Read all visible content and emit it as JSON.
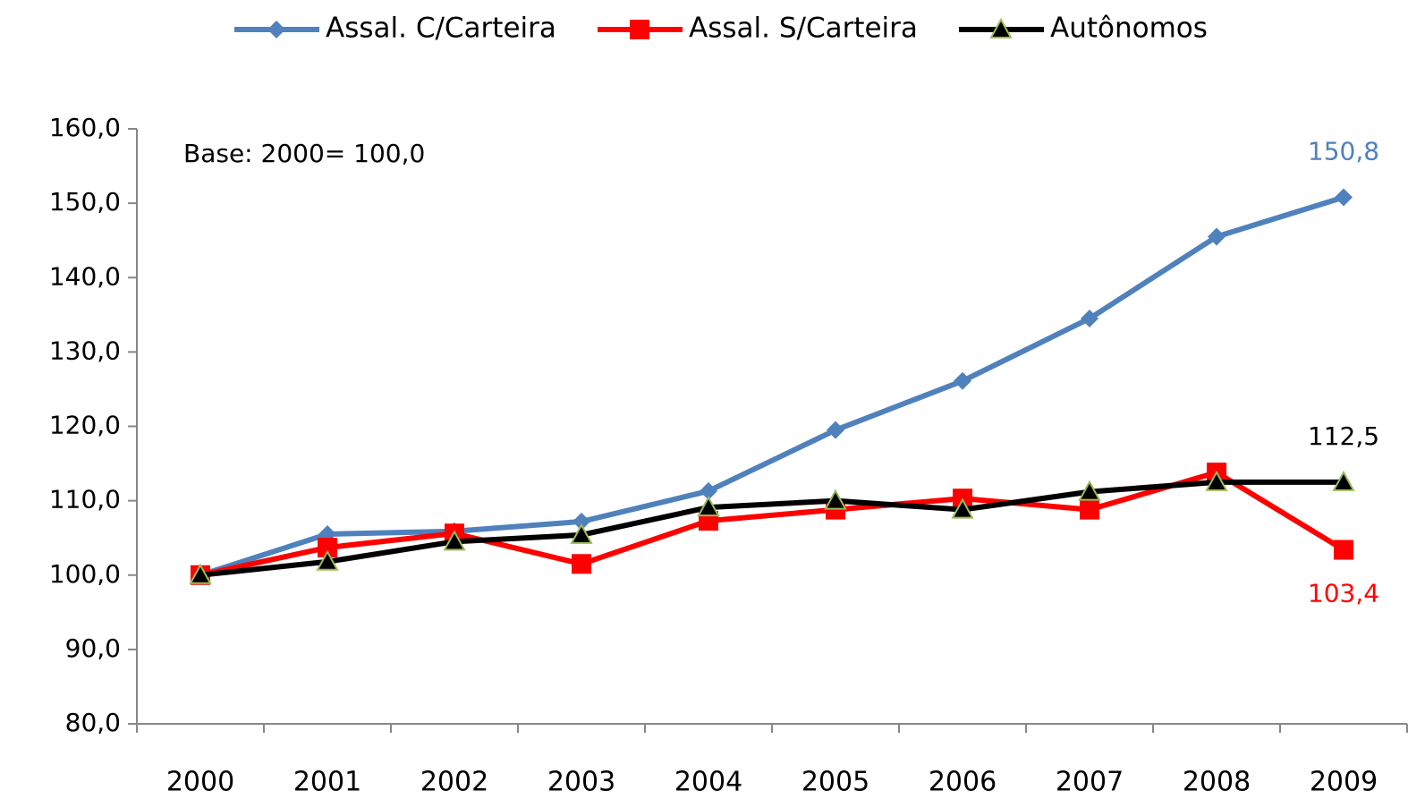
{
  "chart_data": {
    "type": "line",
    "annotation": "Base: 2000= 100,0",
    "categories": [
      "2000",
      "2001",
      "2002",
      "2003",
      "2004",
      "2005",
      "2006",
      "2007",
      "2008",
      "2009"
    ],
    "series": [
      {
        "name": "Assal. C/Carteira",
        "color": "#4f81bd",
        "marker": "diamond",
        "values": [
          100,
          105.5,
          105.9,
          107.2,
          111.3,
          119.5,
          126.1,
          134.5,
          145.5,
          150.8
        ],
        "value_labels": [
          null,
          null,
          null,
          null,
          null,
          null,
          null,
          null,
          null,
          "150,8"
        ]
      },
      {
        "name": "Assal. S/Carteira",
        "color": "#ff0000",
        "marker": "square",
        "values": [
          100,
          103.7,
          105.6,
          101.5,
          107.3,
          108.8,
          110.3,
          108.8,
          113.8,
          103.4
        ],
        "value_labels": [
          null,
          null,
          null,
          null,
          null,
          null,
          null,
          null,
          null,
          "103,4"
        ]
      },
      {
        "name": "Autônomos",
        "color": "#000000",
        "marker": "triangle",
        "values": [
          100,
          101.8,
          104.5,
          105.4,
          109.1,
          110.0,
          108.8,
          111.2,
          112.5,
          112.5
        ],
        "value_labels": [
          null,
          null,
          null,
          null,
          null,
          null,
          null,
          null,
          null,
          "112,5"
        ]
      }
    ],
    "ylim": [
      80,
      160
    ],
    "yticks": [
      {
        "value": 80,
        "label": "80,0"
      },
      {
        "value": 90,
        "label": "90,0"
      },
      {
        "value": 100,
        "label": "100,0"
      },
      {
        "value": 110,
        "label": "110,0"
      },
      {
        "value": 120,
        "label": "120,0"
      },
      {
        "value": 130,
        "label": "130,0"
      },
      {
        "value": 140,
        "label": "140,0"
      },
      {
        "value": 150,
        "label": "150,0"
      },
      {
        "value": 160,
        "label": "160,0"
      }
    ],
    "grid": false,
    "legend": "top"
  }
}
